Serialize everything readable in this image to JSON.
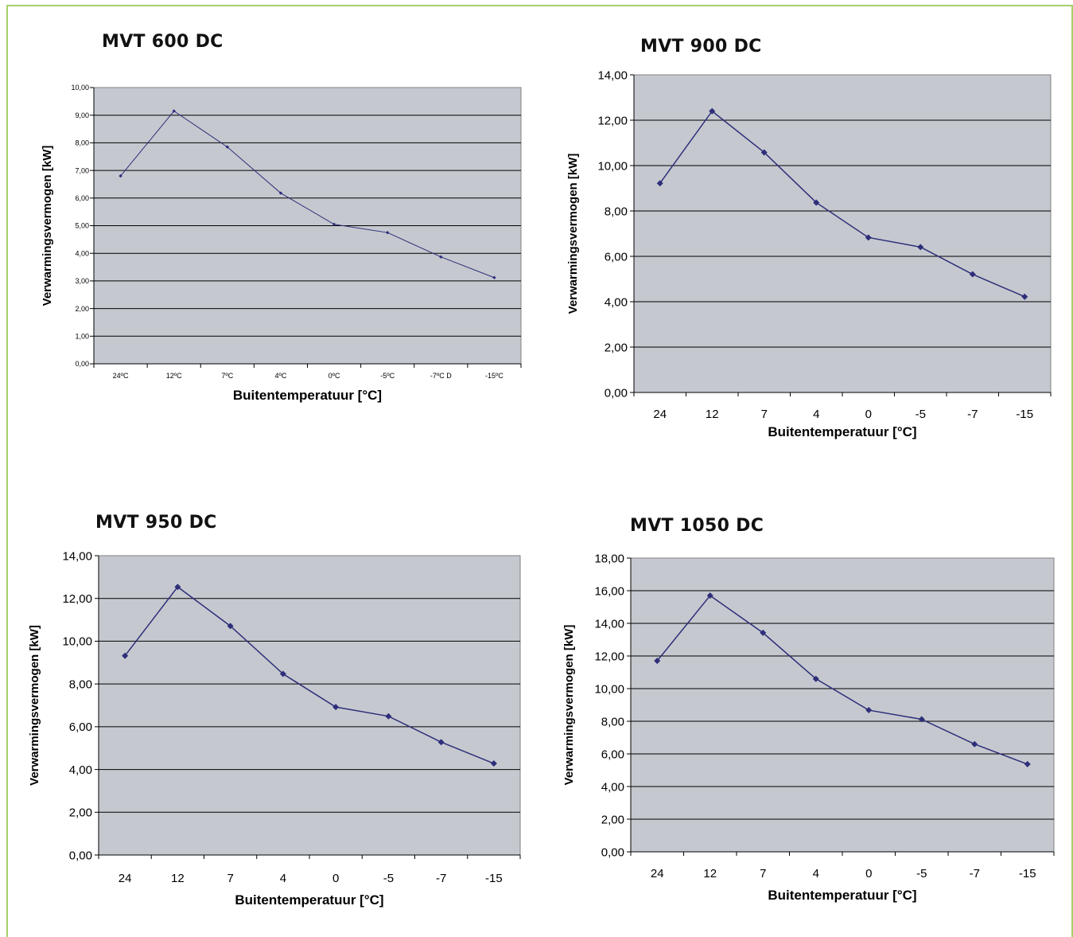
{
  "charts": [
    {
      "title": "MVT 600 DC",
      "chart_data": {
        "type": "line",
        "categories": [
          "24ºC",
          "12ºC",
          "7ºC",
          "4ºC",
          "0ºC",
          "-5ºC",
          "-7ºC D",
          "-15ºC"
        ],
        "series": [
          {
            "values": [
              6.8,
              9.15,
              7.85,
              6.18,
              5.05,
              4.75,
              3.87,
              3.12
            ]
          }
        ],
        "title": "MVT 600 DC",
        "xlabel": "Buitentemperatuur [°C]",
        "ylabel": "Verwarmingsvermogen [kW]",
        "ylim": [
          0,
          10
        ],
        "yticks": [
          "0,00",
          "1,00",
          "2,00",
          "3,00",
          "4,00",
          "5,00",
          "6,00",
          "7,00",
          "8,00",
          "9,00",
          "10,00"
        ],
        "grid": true,
        "legend": "none",
        "colors": {
          "line": "#2e2e7a",
          "plot_bg": "#c5c9cf",
          "grid": "#000000"
        }
      }
    },
    {
      "title": "MVT 900 DC",
      "chart_data": {
        "type": "line",
        "categories": [
          "24",
          "12",
          "7",
          "4",
          "0",
          "-5",
          "-7",
          "-15"
        ],
        "series": [
          {
            "values": [
              9.22,
              12.4,
              10.58,
              8.37,
              6.83,
              6.41,
              5.21,
              4.22
            ]
          }
        ],
        "title": "MVT 900 DC",
        "xlabel": "Buitentemperatuur [°C]",
        "ylabel": "Verwarmingsvermogen [kW]",
        "ylim": [
          0,
          14
        ],
        "yticks": [
          "0,00",
          "2,00",
          "4,00",
          "6,00",
          "8,00",
          "10,00",
          "12,00",
          "14,00"
        ],
        "grid": true,
        "legend": "none",
        "colors": {
          "line": "#2e2e7a",
          "plot_bg": "#c5c9cf",
          "grid": "#000000"
        }
      }
    },
    {
      "title": "MVT 950 DC",
      "chart_data": {
        "type": "line",
        "categories": [
          "24",
          "12",
          "7",
          "4",
          "0",
          "-5",
          "-7",
          "-15"
        ],
        "series": [
          {
            "values": [
              9.32,
              12.54,
              10.71,
              8.47,
              6.92,
              6.49,
              5.28,
              4.28
            ]
          }
        ],
        "title": "MVT 950 DC",
        "xlabel": "Buitentemperatuur [°C]",
        "ylabel": "Verwarmingsvermogen [kW]",
        "ylim": [
          0,
          14
        ],
        "yticks": [
          "0,00",
          "2,00",
          "4,00",
          "6,00",
          "8,00",
          "10,00",
          "12,00",
          "14,00"
        ],
        "grid": true,
        "legend": "none",
        "colors": {
          "line": "#2e2e7a",
          "plot_bg": "#c5c9cf",
          "grid": "#000000"
        }
      }
    },
    {
      "title": "MVT 1050 DC",
      "chart_data": {
        "type": "line",
        "categories": [
          "24",
          "12",
          "7",
          "4",
          "0",
          "-5",
          "-7",
          "-15"
        ],
        "series": [
          {
            "values": [
              11.7,
              15.7,
              13.42,
              10.6,
              8.68,
              8.12,
              6.6,
              5.37
            ]
          }
        ],
        "title": "MVT 1050 DC",
        "xlabel": "Buitentemperatuur [°C]",
        "ylabel": "Verwarmingsvermogen [kW]",
        "ylim": [
          0,
          18
        ],
        "yticks": [
          "0,00",
          "2,00",
          "4,00",
          "6,00",
          "8,00",
          "10,00",
          "12,00",
          "14,00",
          "16,00",
          "18,00"
        ],
        "grid": true,
        "legend": "none",
        "colors": {
          "line": "#2e2e7a",
          "plot_bg": "#c5c9cf",
          "grid": "#000000"
        }
      }
    }
  ]
}
